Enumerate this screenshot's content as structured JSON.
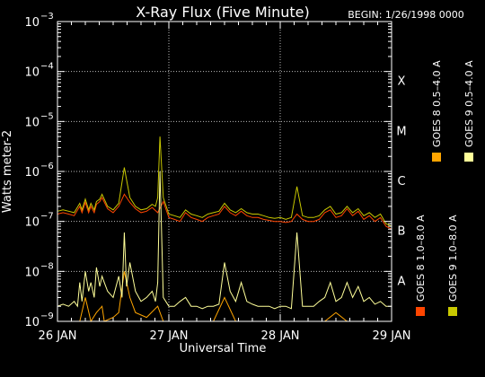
{
  "chart_data": {
    "type": "line",
    "title": "X-Ray Flux (Five Minute)",
    "begin_label": "BEGIN: 1/26/1998 0000",
    "xlabel": "Universal Time",
    "ylabel": "Watts meter-2",
    "x_range_days": [
      0,
      3
    ],
    "x_ticks": [
      {
        "day": 0,
        "label": "26 JAN"
      },
      {
        "day": 1,
        "label": "27 JAN"
      },
      {
        "day": 2,
        "label": "28 JAN"
      },
      {
        "day": 3,
        "label": "29 JAN"
      }
    ],
    "y_scale": "log",
    "y_range": [
      1e-09,
      0.001
    ],
    "y_ticks": [
      {
        "exp": -9,
        "mantissa": "10",
        "sup": "−9"
      },
      {
        "exp": -8,
        "mantissa": "10",
        "sup": "−8"
      },
      {
        "exp": -7,
        "mantissa": "10",
        "sup": "−7"
      },
      {
        "exp": -6,
        "mantissa": "10",
        "sup": "−6"
      },
      {
        "exp": -5,
        "mantissa": "10",
        "sup": "−5"
      },
      {
        "exp": -4,
        "mantissa": "10",
        "sup": "−4"
      },
      {
        "exp": -3,
        "mantissa": "10",
        "sup": "−3"
      }
    ],
    "flare_classes": [
      {
        "label": "A",
        "exp": -8
      },
      {
        "label": "B",
        "exp": -7
      },
      {
        "label": "C",
        "exp": -6
      },
      {
        "label": "M",
        "exp": -5
      },
      {
        "label": "X",
        "exp": -4
      }
    ],
    "grid": "dotted",
    "legend": {
      "placement": "right",
      "entries": [
        {
          "label": "GOES 8 1.0–8.0 A",
          "color": "#ff4500"
        },
        {
          "label": "GOES 8 0.5–4.0 A",
          "color": "#ffa500"
        },
        {
          "label": "GOES 9 1.0–8.0 A",
          "color": "#c8c800"
        },
        {
          "label": "GOES 9 0.5–4.0 A",
          "color": "#ffff99"
        }
      ]
    },
    "series": [
      {
        "name": "GOES 8 1.0–8.0 A",
        "color": "#ff4500",
        "x": [
          0.0,
          0.05,
          0.1,
          0.15,
          0.2,
          0.22,
          0.25,
          0.28,
          0.3,
          0.33,
          0.35,
          0.38,
          0.4,
          0.45,
          0.5,
          0.55,
          0.6,
          0.65,
          0.7,
          0.75,
          0.8,
          0.85,
          0.9,
          0.95,
          1.0,
          1.05,
          1.1,
          1.15,
          1.2,
          1.25,
          1.3,
          1.35,
          1.4,
          1.45,
          1.5,
          1.55,
          1.6,
          1.65,
          1.7,
          1.75,
          1.8,
          1.85,
          1.9,
          1.95,
          2.0,
          2.05,
          2.1,
          2.15,
          2.2,
          2.25,
          2.3,
          2.35,
          2.4,
          2.45,
          2.5,
          2.55,
          2.6,
          2.65,
          2.7,
          2.75,
          2.8,
          2.85,
          2.9,
          2.95,
          3.0
        ],
        "y": [
          1.4e-07,
          1.5e-07,
          1.4e-07,
          1.3e-07,
          2e-07,
          1.5e-07,
          2.4e-07,
          1.5e-07,
          2e-07,
          1.5e-07,
          2.2e-07,
          2.5e-07,
          3e-07,
          1.8e-07,
          1.5e-07,
          2e-07,
          3.5e-07,
          2.4e-07,
          1.8e-07,
          1.5e-07,
          1.6e-07,
          1.9e-07,
          1.5e-07,
          2.5e-07,
          1.2e-07,
          1.1e-07,
          1e-07,
          1.5e-07,
          1.2e-07,
          1.1e-07,
          1e-07,
          1.2e-07,
          1.3e-07,
          1.4e-07,
          2e-07,
          1.5e-07,
          1.3e-07,
          1.6e-07,
          1.3e-07,
          1.2e-07,
          1.2e-07,
          1.1e-07,
          1.05e-07,
          1e-07,
          1e-07,
          9.5e-08,
          1e-07,
          1.4e-07,
          1.1e-07,
          1e-07,
          1e-07,
          1.1e-07,
          1.5e-07,
          1.7e-07,
          1.2e-07,
          1.3e-07,
          1.8e-07,
          1.3e-07,
          1.6e-07,
          1.1e-07,
          1.3e-07,
          1e-07,
          1.2e-07,
          8e-08,
          7e-08
        ]
      },
      {
        "name": "GOES 8 0.5–4.0 A",
        "color": "#ffa500",
        "x": [
          0.0,
          0.1,
          0.2,
          0.25,
          0.3,
          0.35,
          0.4,
          0.42,
          0.5,
          0.55,
          0.6,
          0.65,
          0.7,
          0.8,
          0.9,
          0.95,
          1.0,
          1.1,
          1.2,
          1.3,
          1.4,
          1.5,
          1.6,
          1.7,
          1.8,
          1.9,
          2.0,
          2.1,
          2.15,
          2.2,
          2.3,
          2.4,
          2.5,
          2.6,
          2.7,
          2.8,
          2.9,
          3.0
        ],
        "y": [
          1e-09,
          1e-09,
          1e-09,
          3e-09,
          1e-09,
          1.5e-09,
          2e-09,
          1e-09,
          1.2e-09,
          1.5e-09,
          1e-08,
          3e-09,
          1.5e-09,
          1.2e-09,
          2e-09,
          1e-09,
          1e-09,
          1e-09,
          1e-09,
          1e-09,
          1e-09,
          3e-09,
          1e-09,
          1e-09,
          1e-09,
          1e-09,
          1e-09,
          1e-09,
          1e-09,
          1e-09,
          1e-09,
          1e-09,
          1.5e-09,
          1e-09,
          1e-09,
          1e-09,
          1e-09,
          1e-09
        ]
      },
      {
        "name": "GOES 9 1.0–8.0 A",
        "color": "#c8c800",
        "x": [
          0.0,
          0.05,
          0.1,
          0.15,
          0.2,
          0.22,
          0.25,
          0.28,
          0.3,
          0.33,
          0.35,
          0.38,
          0.4,
          0.45,
          0.5,
          0.55,
          0.6,
          0.65,
          0.7,
          0.75,
          0.8,
          0.85,
          0.88,
          0.9,
          0.92,
          0.95,
          1.0,
          1.05,
          1.1,
          1.15,
          1.2,
          1.25,
          1.3,
          1.35,
          1.4,
          1.45,
          1.5,
          1.55,
          1.6,
          1.65,
          1.7,
          1.75,
          1.8,
          1.85,
          1.9,
          1.95,
          2.0,
          2.05,
          2.1,
          2.15,
          2.2,
          2.25,
          2.3,
          2.35,
          2.4,
          2.45,
          2.5,
          2.55,
          2.6,
          2.65,
          2.7,
          2.75,
          2.8,
          2.85,
          2.9,
          2.95,
          3.0
        ],
        "y": [
          1.6e-07,
          1.7e-07,
          1.6e-07,
          1.5e-07,
          2.3e-07,
          1.7e-07,
          2.8e-07,
          1.7e-07,
          2.3e-07,
          1.7e-07,
          2.5e-07,
          2.8e-07,
          3.5e-07,
          2e-07,
          1.7e-07,
          2.3e-07,
          1.2e-06,
          3e-07,
          2e-07,
          1.7e-07,
          1.8e-07,
          2.2e-07,
          2e-07,
          3e-07,
          5e-06,
          3e-07,
          1.4e-07,
          1.3e-07,
          1.2e-07,
          1.7e-07,
          1.4e-07,
          1.3e-07,
          1.2e-07,
          1.4e-07,
          1.5e-07,
          1.6e-07,
          2.3e-07,
          1.7e-07,
          1.5e-07,
          1.8e-07,
          1.5e-07,
          1.4e-07,
          1.4e-07,
          1.3e-07,
          1.2e-07,
          1.15e-07,
          1.2e-07,
          1.1e-07,
          1.2e-07,
          5e-07,
          1.3e-07,
          1.2e-07,
          1.2e-07,
          1.3e-07,
          1.7e-07,
          2e-07,
          1.4e-07,
          1.5e-07,
          2e-07,
          1.5e-07,
          1.8e-07,
          1.3e-07,
          1.5e-07,
          1.2e-07,
          1.4e-07,
          9e-08,
          8e-08
        ]
      },
      {
        "name": "GOES 9 0.5–4.0 A",
        "color": "#ffff99",
        "x": [
          0.0,
          0.05,
          0.1,
          0.15,
          0.18,
          0.2,
          0.22,
          0.25,
          0.28,
          0.3,
          0.33,
          0.35,
          0.38,
          0.4,
          0.42,
          0.45,
          0.5,
          0.55,
          0.58,
          0.6,
          0.62,
          0.65,
          0.7,
          0.75,
          0.8,
          0.85,
          0.88,
          0.9,
          0.92,
          0.95,
          1.0,
          1.05,
          1.1,
          1.15,
          1.2,
          1.25,
          1.3,
          1.35,
          1.4,
          1.45,
          1.5,
          1.55,
          1.6,
          1.65,
          1.7,
          1.75,
          1.8,
          1.85,
          1.9,
          1.95,
          2.0,
          2.05,
          2.1,
          2.15,
          2.2,
          2.25,
          2.3,
          2.35,
          2.4,
          2.45,
          2.5,
          2.55,
          2.6,
          2.65,
          2.7,
          2.75,
          2.8,
          2.85,
          2.9,
          2.95,
          3.0
        ],
        "y": [
          2e-09,
          2.2e-09,
          2e-09,
          2.5e-09,
          2e-09,
          6e-09,
          2.5e-09,
          1e-08,
          4e-09,
          6e-09,
          3e-09,
          1.2e-08,
          5e-09,
          8e-09,
          6e-09,
          4e-09,
          3e-09,
          8e-09,
          3e-09,
          6e-08,
          5e-09,
          1.5e-08,
          4e-09,
          2.5e-09,
          3e-09,
          4e-09,
          2.5e-09,
          6e-09,
          1e-06,
          3e-09,
          2e-09,
          2e-09,
          2.5e-09,
          3e-09,
          2e-09,
          2e-09,
          1.8e-09,
          2e-09,
          2e-09,
          2.2e-09,
          1.5e-08,
          4e-09,
          2.5e-09,
          6e-09,
          2.5e-09,
          2.2e-09,
          2e-09,
          2e-09,
          2e-09,
          1.8e-09,
          2e-09,
          2e-09,
          1.8e-09,
          6e-08,
          2e-09,
          2e-09,
          2e-09,
          2.5e-09,
          3e-09,
          6e-09,
          2.5e-09,
          3e-09,
          6e-09,
          3e-09,
          5e-09,
          2.5e-09,
          3e-09,
          2.2e-09,
          2.5e-09,
          2e-09,
          2e-09
        ]
      }
    ]
  }
}
